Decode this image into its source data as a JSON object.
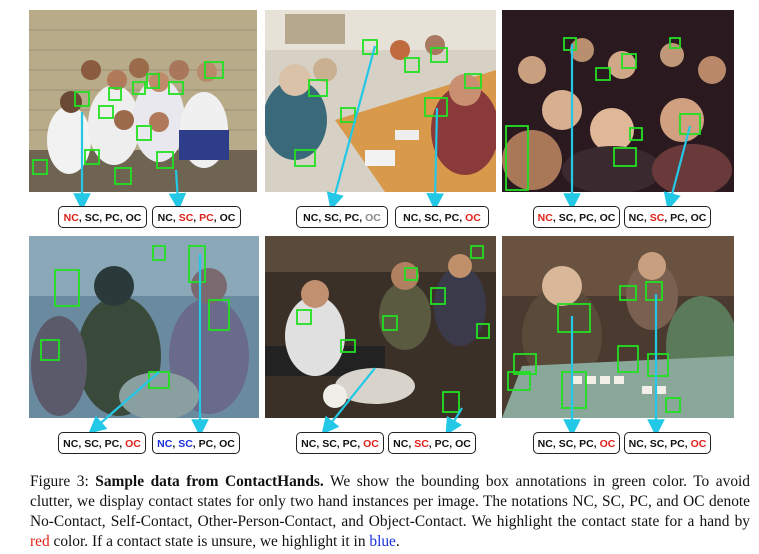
{
  "figure": {
    "panels": [
      {
        "name": "panel-children-group",
        "labels": [
          {
            "states": [
              {
                "t": "NC",
                "c": "red"
              },
              {
                "t": "SC",
                "c": "black"
              },
              {
                "t": "PC",
                "c": "black"
              },
              {
                "t": "OC",
                "c": "black"
              }
            ]
          },
          {
            "states": [
              {
                "t": "NC",
                "c": "black"
              },
              {
                "t": "SC",
                "c": "red"
              },
              {
                "t": "PC",
                "c": "red"
              },
              {
                "t": "OC",
                "c": "black"
              }
            ]
          }
        ]
      },
      {
        "name": "panel-meeting-table",
        "labels": [
          {
            "states": [
              {
                "t": "NC",
                "c": "black"
              },
              {
                "t": "SC",
                "c": "black"
              },
              {
                "t": "PC",
                "c": "black"
              },
              {
                "t": "OC",
                "c": "gray"
              }
            ]
          },
          {
            "states": [
              {
                "t": "NC",
                "c": "black"
              },
              {
                "t": "SC",
                "c": "black"
              },
              {
                "t": "PC",
                "c": "black"
              },
              {
                "t": "OC",
                "c": "red"
              }
            ]
          }
        ]
      },
      {
        "name": "panel-crowd-audience",
        "labels": [
          {
            "states": [
              {
                "t": "NC",
                "c": "red"
              },
              {
                "t": "SC",
                "c": "black"
              },
              {
                "t": "PC",
                "c": "black"
              },
              {
                "t": "OC",
                "c": "black"
              }
            ]
          },
          {
            "states": [
              {
                "t": "NC",
                "c": "black"
              },
              {
                "t": "SC",
                "c": "red"
              },
              {
                "t": "PC",
                "c": "black"
              },
              {
                "t": "OC",
                "c": "black"
              }
            ]
          }
        ]
      },
      {
        "name": "panel-color-festival",
        "labels": [
          {
            "states": [
              {
                "t": "NC",
                "c": "black"
              },
              {
                "t": "SC",
                "c": "black"
              },
              {
                "t": "PC",
                "c": "black"
              },
              {
                "t": "OC",
                "c": "red"
              }
            ]
          },
          {
            "states": [
              {
                "t": "NC",
                "c": "blue"
              },
              {
                "t": "SC",
                "c": "blue"
              },
              {
                "t": "PC",
                "c": "black"
              },
              {
                "t": "OC",
                "c": "black"
              }
            ]
          }
        ]
      },
      {
        "name": "panel-market-stall",
        "labels": [
          {
            "states": [
              {
                "t": "NC",
                "c": "black"
              },
              {
                "t": "SC",
                "c": "black"
              },
              {
                "t": "PC",
                "c": "black"
              },
              {
                "t": "OC",
                "c": "red"
              }
            ]
          },
          {
            "states": [
              {
                "t": "NC",
                "c": "black"
              },
              {
                "t": "SC",
                "c": "red"
              },
              {
                "t": "PC",
                "c": "black"
              },
              {
                "t": "OC",
                "c": "black"
              }
            ]
          }
        ]
      },
      {
        "name": "panel-mahjong-table",
        "labels": [
          {
            "states": [
              {
                "t": "NC",
                "c": "black"
              },
              {
                "t": "SC",
                "c": "black"
              },
              {
                "t": "PC",
                "c": "black"
              },
              {
                "t": "OC",
                "c": "red"
              }
            ]
          },
          {
            "states": [
              {
                "t": "NC",
                "c": "black"
              },
              {
                "t": "SC",
                "c": "black"
              },
              {
                "t": "PC",
                "c": "black"
              },
              {
                "t": "OC",
                "c": "red"
              }
            ]
          }
        ]
      }
    ],
    "colors": {
      "red": "#e0201a",
      "blue": "#1a2ee0",
      "gray": "#888888",
      "black": "#111111",
      "box": "#22e022",
      "arrow": "#22c8e6"
    }
  },
  "caption": {
    "prefix": "Figure 3: ",
    "title": "Sample data from ContactHands.",
    "body1": " We show the bounding box annotations in green color. To avoid clutter, we display contact states for only two hand instances per image. The notations NC, SC, PC, and OC denote No-Contact, Self-Contact, Other-Person-Contact, and Object-Contact. We highlight the contact state for a hand by ",
    "red_word": "red",
    "body2": " color. If a contact state is unsure, we highlight it in ",
    "blue_word": "blue",
    "end": "."
  }
}
